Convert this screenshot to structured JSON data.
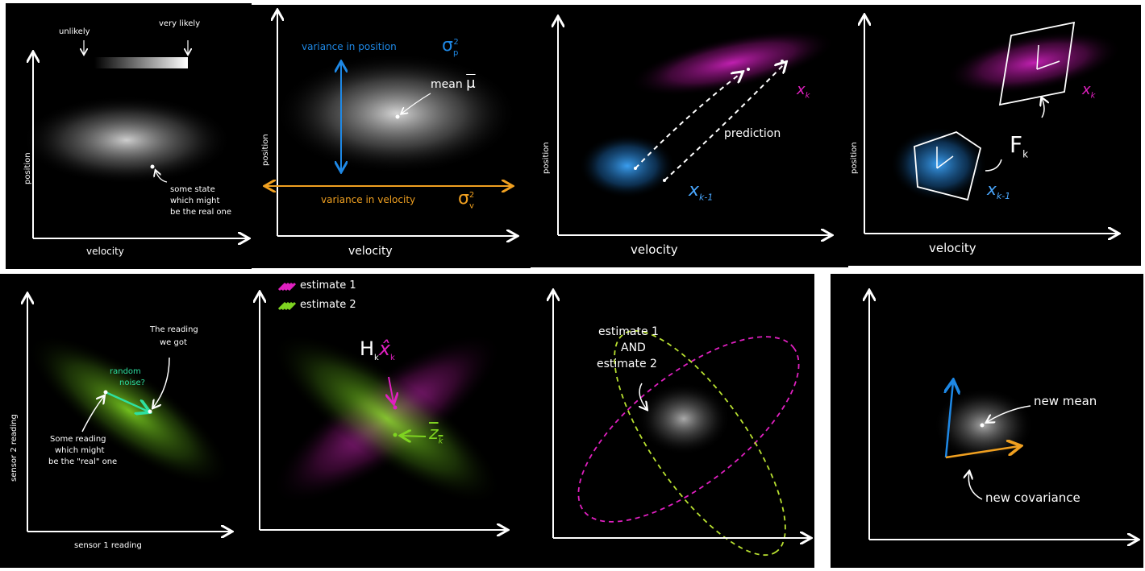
{
  "panels": {
    "p1": {
      "unlikely": "unlikely",
      "very_likely": "very likely",
      "ylabel": "position",
      "xlabel": "velocity",
      "note_l1": "some state",
      "note_l2": "which might",
      "note_l3": "be the real one"
    },
    "p2": {
      "var_pos": "variance in position",
      "sigma_p": "σ",
      "sigma_p_sub": "p",
      "sigma_p_sup": "2",
      "mean": "mean",
      "mu": "μ",
      "var_vel": "variance in velocity",
      "sigma_v": "σ",
      "sigma_v_sub": "v",
      "sigma_v_sup": "2",
      "ylabel": "position",
      "xlabel": "velocity"
    },
    "p3": {
      "prediction": "prediction",
      "xk": "x",
      "xk_sub": "k",
      "xk1": "x",
      "xk1_sub": "k-1",
      "ylabel": "position",
      "xlabel": "velocity"
    },
    "p4": {
      "F": "F",
      "F_sub": "k",
      "xk": "x",
      "xk_sub": "k",
      "xk1": "x",
      "xk1_sub": "k-1",
      "ylabel": "position",
      "xlabel": "velocity"
    },
    "p5": {
      "ylabel": "sensor 2 reading",
      "xlabel": "sensor 1 reading",
      "reading_l1": "The reading",
      "reading_l2": "we got",
      "noise_l1": "random",
      "noise_l2": "noise?",
      "some_l1": "Some reading",
      "some_l2": "which might",
      "some_l3": "be the \"real\" one"
    },
    "p6": {
      "est1": "estimate 1",
      "est2": "estimate 2",
      "H": "H",
      "H_sub": "k",
      "xhat": "x̂",
      "xhat_sub": "k",
      "z": "z",
      "z_sub": "k"
    },
    "p7": {
      "l1": "estimate 1",
      "l2": "AND",
      "l3": "estimate 2"
    },
    "p8": {
      "new_mean": "new mean",
      "new_cov": "new covariance"
    }
  },
  "colors": {
    "blue": "#1e88e5",
    "orange": "#f0a020",
    "magenta": "#e020c0",
    "lightblue": "#4aa8ff",
    "green": "#7ed321",
    "teal": "#2ee0a0"
  }
}
